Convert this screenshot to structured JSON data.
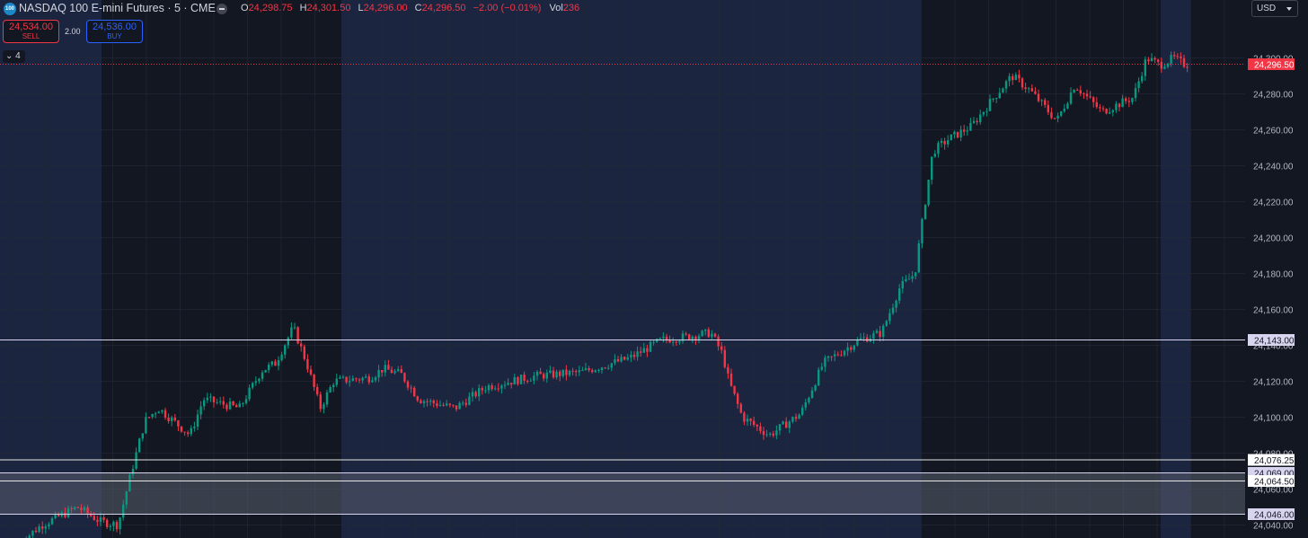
{
  "header": {
    "symbol_badge": "100",
    "title": "NASDAQ 100 E-mini Futures · 5 · CME",
    "ohlc": {
      "o_label": "O",
      "o": "24,298.75",
      "h_label": "H",
      "h": "24,301.50",
      "l_label": "L",
      "l": "24,296.00",
      "c_label": "C",
      "c": "24,296.50",
      "change": "−2.00 (−0.01%)",
      "vol_label": "Vol",
      "vol": "236"
    }
  },
  "trade": {
    "sell_price": "24,534.00",
    "sell_label": "SELL",
    "spread": "2.00",
    "buy_price": "24,536.00",
    "buy_label": "BUY"
  },
  "indicators_toggle": "4",
  "currency": "USD",
  "colors": {
    "up": "#089981",
    "down": "#f23645",
    "background": "#131722",
    "session_shade": "#1c2540",
    "grid": "#232836",
    "current_price": "#f23645"
  },
  "chart_data": {
    "type": "candlestick",
    "y_range": [
      24035,
      24318
    ],
    "y_ticks": [
      {
        "value": 24040,
        "label": "24,040.00"
      },
      {
        "value": 24060,
        "label": "24,060.00"
      },
      {
        "value": 24080,
        "label": "24,080.00"
      },
      {
        "value": 24100,
        "label": "24,100.00"
      },
      {
        "value": 24120,
        "label": "24,120.00"
      },
      {
        "value": 24140,
        "label": "24,140.00"
      },
      {
        "value": 24160,
        "label": "24,160.00"
      },
      {
        "value": 24180,
        "label": "24,180.00"
      },
      {
        "value": 24200,
        "label": "24,200.00"
      },
      {
        "value": 24220,
        "label": "24,220.00"
      },
      {
        "value": 24240,
        "label": "24,240.00"
      },
      {
        "value": 24260,
        "label": "24,260.00"
      },
      {
        "value": 24280,
        "label": "24,280.00"
      },
      {
        "value": 24300,
        "label": "24,300.00"
      }
    ],
    "current_price": {
      "value": 24296.5,
      "label": "24,296.50"
    },
    "horizontal_lines": [
      {
        "value": 24143.0,
        "label": "24,143.00",
        "style": "lavender"
      },
      {
        "value": 24076.25,
        "label": "24,076.25",
        "style": "white"
      },
      {
        "value": 24069.0,
        "label": "24,069.00",
        "style": "lavender"
      },
      {
        "value": 24064.5,
        "label": "24,064.50",
        "style": "white"
      },
      {
        "value": 24046.0,
        "label": "24,046.00",
        "style": "lavender"
      }
    ],
    "zone": {
      "from": 24046.0,
      "to": 24069.0
    },
    "path_points": [
      [
        0,
        24020
      ],
      [
        50,
        24040
      ],
      [
        90,
        24050
      ],
      [
        115,
        24042
      ],
      [
        135,
        24040
      ],
      [
        150,
        24070
      ],
      [
        165,
        24098
      ],
      [
        180,
        24105
      ],
      [
        215,
        24090
      ],
      [
        230,
        24110
      ],
      [
        270,
        24105
      ],
      [
        295,
        24126
      ],
      [
        310,
        24130
      ],
      [
        330,
        24150
      ],
      [
        345,
        24130
      ],
      [
        360,
        24105
      ],
      [
        375,
        24120
      ],
      [
        415,
        24122
      ],
      [
        430,
        24127
      ],
      [
        450,
        24124
      ],
      [
        470,
        24110
      ],
      [
        510,
        24105
      ],
      [
        545,
        24117
      ],
      [
        600,
        24123
      ],
      [
        650,
        24125
      ],
      [
        705,
        24133
      ],
      [
        740,
        24143
      ],
      [
        770,
        24145
      ],
      [
        795,
        24147
      ],
      [
        808,
        24135
      ],
      [
        815,
        24120
      ],
      [
        830,
        24100
      ],
      [
        860,
        24090
      ],
      [
        895,
        24102
      ],
      [
        920,
        24130
      ],
      [
        960,
        24143
      ],
      [
        985,
        24147
      ],
      [
        1005,
        24172
      ],
      [
        1022,
        24180
      ],
      [
        1032,
        24215
      ],
      [
        1042,
        24248
      ],
      [
        1060,
        24255
      ],
      [
        1085,
        24262
      ],
      [
        1110,
        24278
      ],
      [
        1130,
        24290
      ],
      [
        1150,
        24282
      ],
      [
        1180,
        24265
      ],
      [
        1200,
        24285
      ],
      [
        1230,
        24270
      ],
      [
        1265,
        24278
      ],
      [
        1280,
        24300
      ],
      [
        1295,
        24296
      ],
      [
        1310,
        24300
      ],
      [
        1322,
        24296.5
      ]
    ],
    "candle_start_x": 22,
    "candle_end_x": 1322,
    "candle_step": 3.6
  }
}
